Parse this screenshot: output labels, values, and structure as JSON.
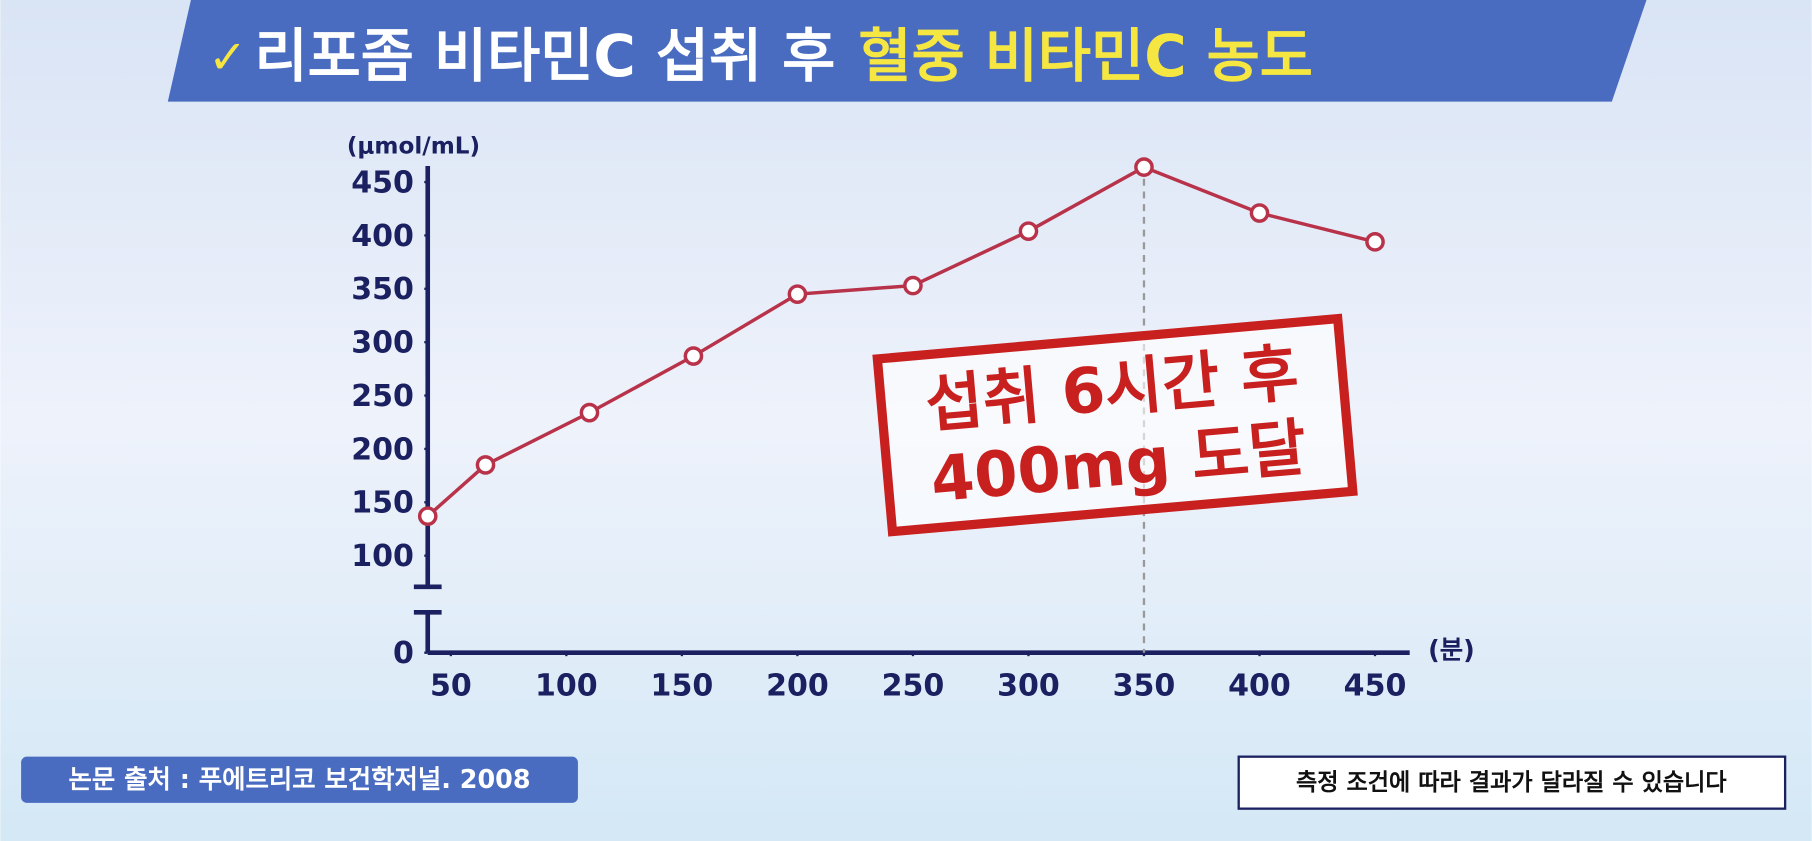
{
  "chart_data": {
    "type": "line",
    "title_parts": [
      "리포좀 비타민C 섭취 후",
      "혈중 비타민C 농도"
    ],
    "y_unit": "(μmol/mL)",
    "x_unit": "(분)",
    "annotation": [
      "섭취 6시간 후",
      "400mg 도달"
    ],
    "x": [
      40,
      65,
      110,
      155,
      200,
      250,
      300,
      350,
      400,
      450
    ],
    "series": [
      {
        "color": "#b8334a",
        "values": [
          137,
          185,
          234,
          287,
          345,
          353,
          404,
          464,
          421,
          394
        ]
      }
    ],
    "xlim": [
      40,
      465
    ],
    "xticks": [
      50,
      100,
      150,
      200,
      250,
      300,
      350,
      400,
      450
    ],
    "ylim": [
      0,
      465
    ],
    "yticks": [
      0,
      100,
      150,
      200,
      250,
      300,
      350,
      400,
      450
    ],
    "y_break": true,
    "highlight_x": 350
  },
  "source": "논문 출처 : 푸에트리코 보건학저널. 2008",
  "disclaimer": "측정 조건에 따라 결과가 달라질 수 있습니다"
}
